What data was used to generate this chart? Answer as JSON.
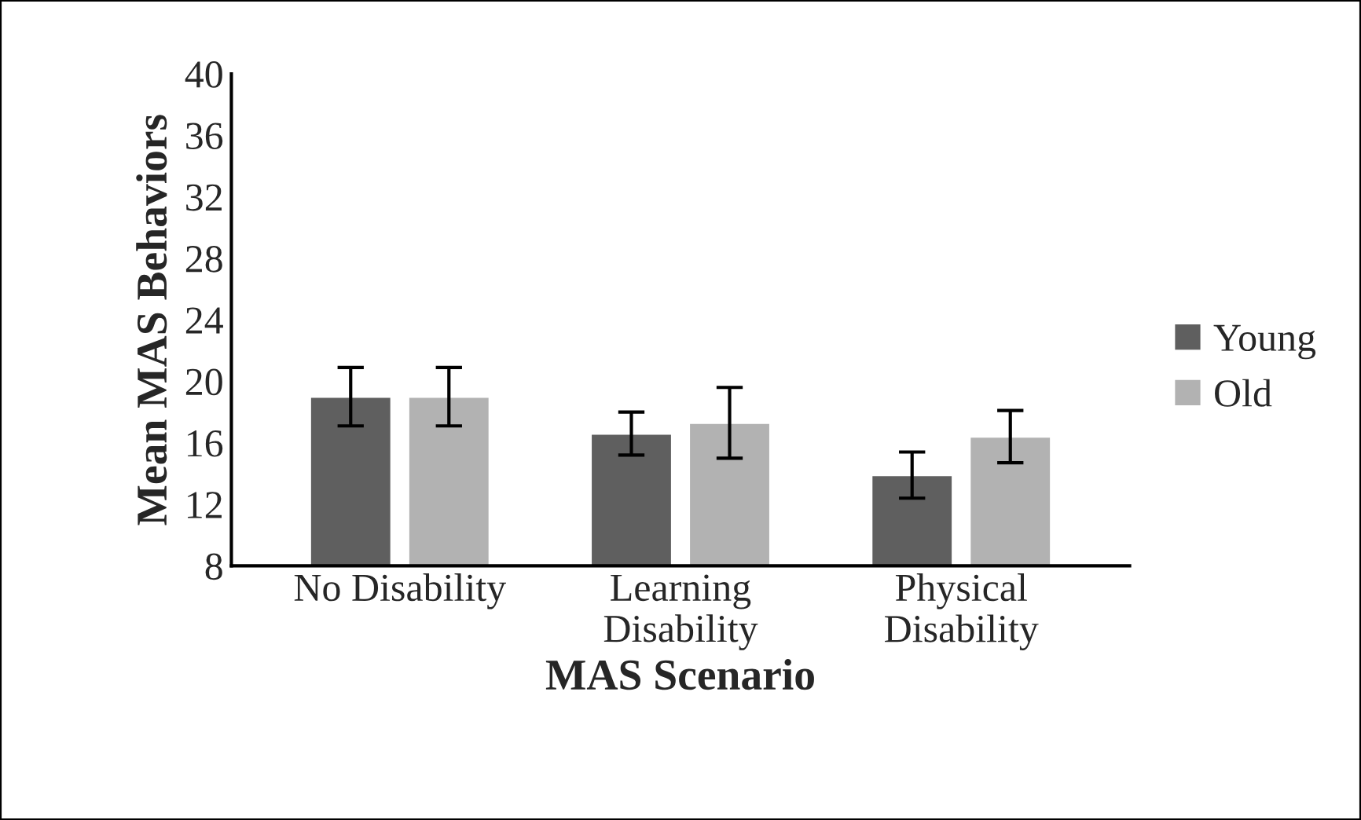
{
  "chart_data": {
    "type": "bar",
    "xlabel": "MAS Scenario",
    "ylabel": "Mean MAS Behaviors",
    "categories": [
      "No Disability",
      "Learning\nDisability",
      "Physical\nDisability"
    ],
    "series": [
      {
        "name": "Young",
        "color": "#5f5f5f",
        "values": [
          19.0,
          16.6,
          13.9
        ],
        "errors": [
          1.9,
          1.4,
          1.5
        ]
      },
      {
        "name": "Old",
        "color": "#b2b2b2",
        "values": [
          19.0,
          17.3,
          16.4
        ],
        "errors": [
          1.9,
          2.3,
          1.7
        ]
      }
    ],
    "ylim": [
      8,
      40
    ],
    "yticks": [
      8,
      12,
      16,
      20,
      24,
      28,
      32,
      36,
      40
    ],
    "grid": false,
    "legend": "right"
  }
}
